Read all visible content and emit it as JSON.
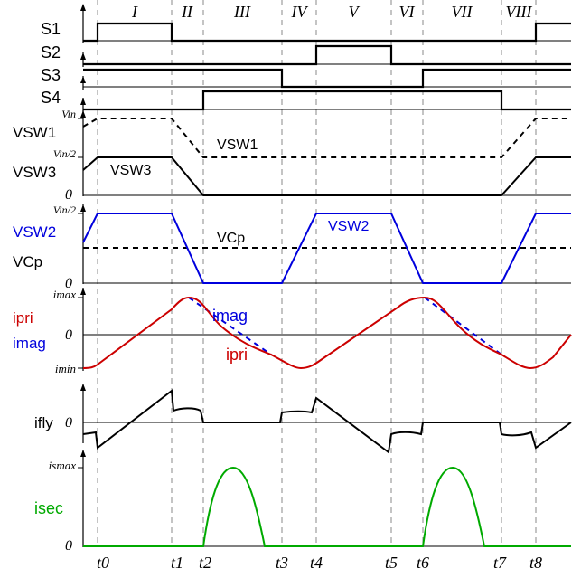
{
  "intervals": [
    "I",
    "II",
    "III",
    "IV",
    "V",
    "VI",
    "VII",
    "VIII"
  ],
  "time_labels": [
    "t0",
    "t1",
    "t2",
    "t3",
    "t4",
    "t5",
    "t6",
    "t7",
    "t8"
  ],
  "gates": [
    "S1",
    "S2",
    "S3",
    "S4"
  ],
  "voltage_panel": {
    "left_labels": [
      "VSW1",
      "VSW3"
    ],
    "ticks": [
      "Vin",
      "Vin/2",
      "0"
    ],
    "curve_labels": [
      "VSW1",
      "VSW3"
    ]
  },
  "vsw2_panel": {
    "left_labels": [
      "VSW2",
      "VCp"
    ],
    "ticks": [
      "Vin/2",
      "0"
    ],
    "curve_labels": [
      "VCp",
      "VSW2"
    ]
  },
  "current_panel": {
    "left_labels": [
      "ipri",
      "imag"
    ],
    "ticks": [
      "imax",
      "0",
      "imin"
    ],
    "curve_labels": [
      "imag",
      "ipri"
    ]
  },
  "fly_panel": {
    "left_label": "ifly",
    "ticks": [
      "0"
    ]
  },
  "sec_panel": {
    "left_label": "isec",
    "ticks": [
      "ismax",
      "0"
    ]
  },
  "colors": {
    "black": "#000000",
    "blue": "#0000dd",
    "red": "#cc0000",
    "green": "#00aa00",
    "grid": "#888888"
  }
}
